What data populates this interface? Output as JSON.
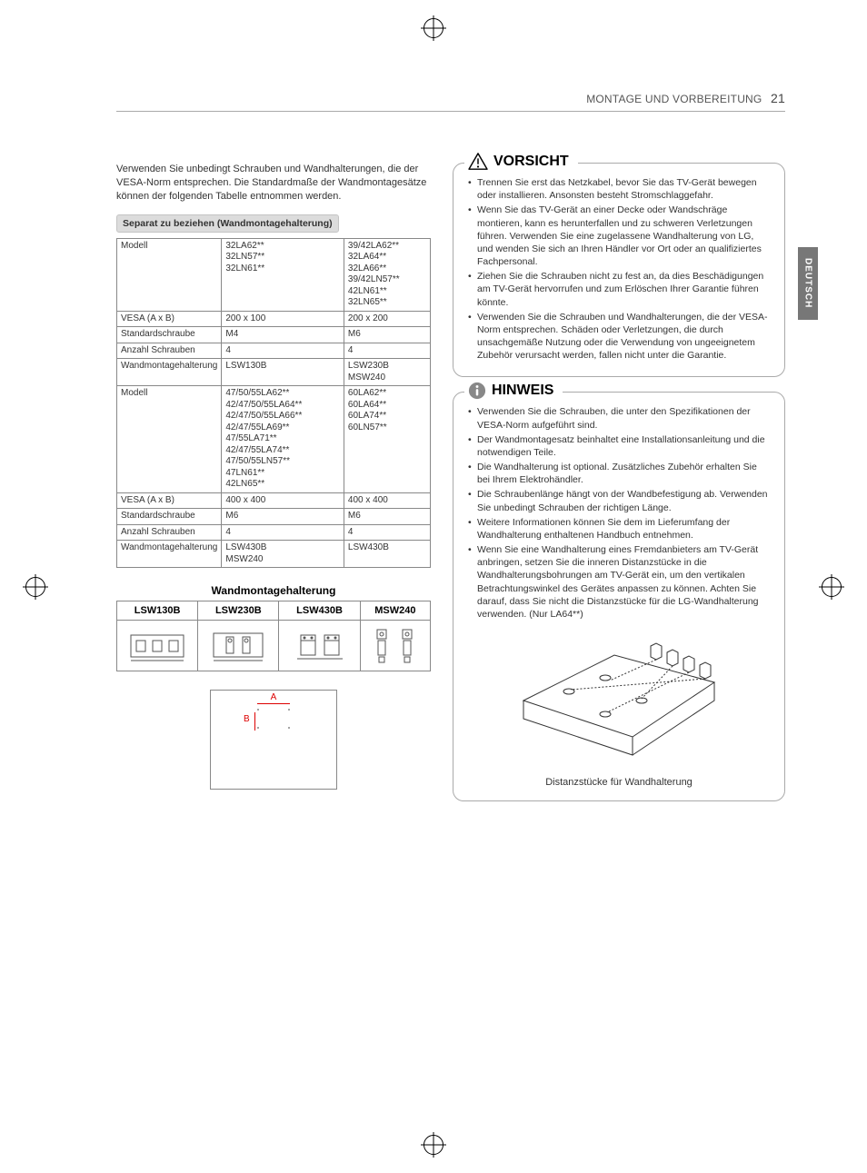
{
  "header": {
    "section": "MONTAGE UND VORBEREITUNG",
    "page_num": "21"
  },
  "lang_tab": "DEUTSCH",
  "intro": "Verwenden Sie unbedingt Schrauben und Wandhalterungen, die der VESA-Norm entsprechen. Die Standardmaße der Wandmontagesätze können der folgenden Tabelle entnommen werden.",
  "subhead": "Separat zu beziehen (Wandmontagehalterung)",
  "spec_table": {
    "row_labels": [
      "Modell",
      "VESA (A x B)",
      "Standardschraube",
      "Anzahl Schrauben",
      "Wandmontagehalterung",
      "Modell",
      "VESA (A x B)",
      "Standardschraube",
      "Anzahl Schrauben",
      "Wandmontagehalterung"
    ],
    "cells": [
      [
        "32LA62**\n32LN57**\n32LN61**",
        "39/42LA62**\n32LA64**\n32LA66**\n39/42LN57**\n42LN61**\n32LN65**"
      ],
      [
        "200 x  100",
        "200 x  200"
      ],
      [
        "M4",
        "M6"
      ],
      [
        "4",
        "4"
      ],
      [
        "LSW130B",
        "LSW230B\nMSW240"
      ],
      [
        "47/50/55LA62**\n42/47/50/55LA64**\n42/47/50/55LA66**\n42/47/55LA69**\n47/55LA71**\n42/47/55LA74**\n47/50/55LN57**\n47LN61**\n42LN65**",
        "60LA62**\n60LA64**\n60LA74**\n60LN57**"
      ],
      [
        "400 x 400",
        "400 x 400"
      ],
      [
        "M6",
        "M6"
      ],
      [
        "4",
        "4"
      ],
      [
        "LSW430B\nMSW240",
        "LSW430B"
      ]
    ]
  },
  "mount_table": {
    "caption": "Wandmontagehalterung",
    "headers": [
      "LSW130B",
      "LSW230B",
      "LSW430B",
      "MSW240"
    ]
  },
  "ab": {
    "a": "A",
    "b": "B"
  },
  "vorsicht": {
    "title": "VORSICHT",
    "items": [
      "Trennen Sie erst das Netzkabel, bevor Sie das TV-Gerät bewegen oder installieren. Ansonsten besteht Stromschlaggefahr.",
      "Wenn Sie das TV-Gerät an einer Decke oder Wandschräge montieren, kann es herunterfallen und zu schweren Verletzungen führen. Verwenden Sie eine zugelassene Wandhalterung von LG, und wenden Sie sich an Ihren Händler vor Ort oder an qualifiziertes Fachpersonal.",
      "Ziehen Sie die Schrauben nicht zu fest an, da dies Beschädigungen am TV-Gerät hervorrufen und zum Erlöschen Ihrer Garantie führen könnte.",
      "Verwenden Sie die Schrauben und Wandhalterungen, die der VESA-Norm entsprechen. Schäden oder Verletzungen, die durch unsachgemäße Nutzung oder die Verwendung von ungeeignetem Zubehör verursacht werden, fallen nicht unter die Garantie."
    ]
  },
  "hinweis": {
    "title": "HINWEIS",
    "items": [
      "Verwenden Sie die Schrauben, die unter den Spezifikationen der VESA-Norm aufgeführt sind.",
      "Der Wandmontagesatz beinhaltet eine Installationsanleitung und die notwendigen Teile.",
      "Die Wandhalterung ist optional. Zusätzliches Zubehör erhalten Sie bei Ihrem Elektrohändler.",
      "Die Schraubenlänge hängt von der Wandbefestigung ab. Verwenden Sie unbedingt Schrauben der richtigen Länge.",
      "Weitere Informationen können Sie dem im Lieferumfang der Wandhalterung enthaltenen Handbuch entnehmen.",
      "Wenn Sie eine Wandhalterung eines Fremdanbieters am TV-Gerät anbringen, setzen Sie die inneren Distanzstücke in die Wandhalterungsbohrungen am TV-Gerät ein, um den vertikalen Betrachtungswinkel des Gerätes anpassen zu können. Achten Sie darauf, dass Sie nicht die Distanzstücke für die LG-Wandhalterung verwenden. (Nur LA64**)"
    ],
    "caption": "Distanzstücke für Wandhalterung"
  },
  "colors": {
    "text": "#333333",
    "header_text": "#555555",
    "border": "#888888",
    "subhead_bg": "#dcdcdc",
    "tab_bg": "#777777",
    "accent": "#d00000"
  }
}
